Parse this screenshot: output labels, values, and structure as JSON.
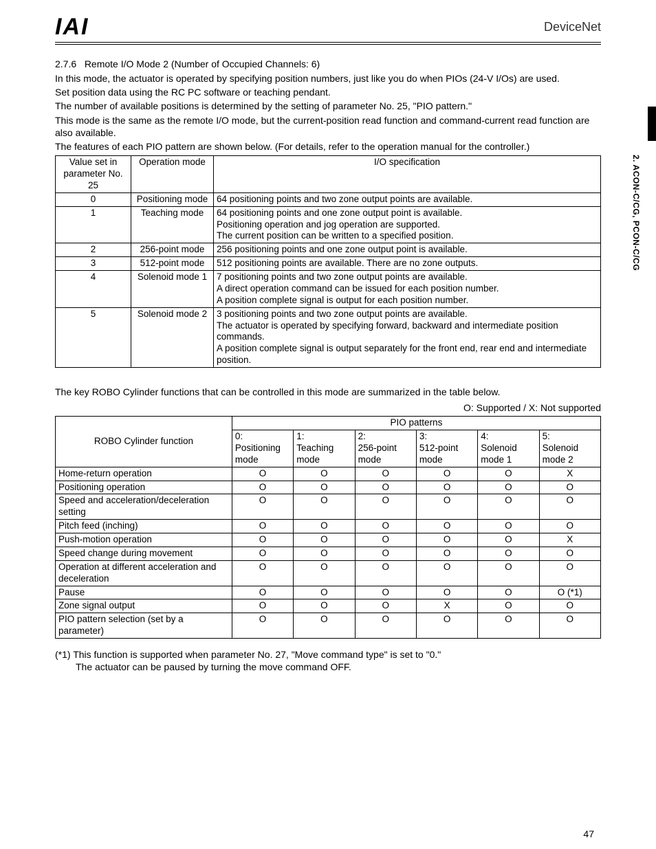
{
  "header": {
    "logo_text": "IAI",
    "brand": "DeviceNet"
  },
  "side_tab": "2. ACON-C/CG, PCON-C/CG",
  "section": {
    "num": "2.7.6",
    "title": "Remote I/O Mode 2 (Number of Occupied Channels: 6)"
  },
  "intro": {
    "p1": "In this mode, the actuator is operated by specifying position numbers, just like you do when PIOs (24-V I/Os) are used.",
    "p2": "Set position data using the RC PC software or teaching pendant.",
    "p3": "The number of available positions is determined by the setting of parameter No. 25, \"PIO pattern.\"",
    "p4": "This mode is the same as the remote I/O mode, but the current-position read function and command-current read function are also available.",
    "p5": "The features of each PIO pattern are shown below. (For details, refer to the operation manual for the controller.)"
  },
  "table1": {
    "headers": {
      "c1a": "Value set in",
      "c1b": "parameter No. 25",
      "c2": "Operation mode",
      "c3": "I/O specification"
    },
    "rows": [
      {
        "v": "0",
        "mode": "Positioning mode",
        "spec": "64 positioning points and two zone output points are available."
      },
      {
        "v": "1",
        "mode": "Teaching mode",
        "spec": "64 positioning points and one zone output point is available.\nPositioning operation and jog operation are supported.\nThe current position can be written to a specified position."
      },
      {
        "v": "2",
        "mode": "256-point mode",
        "spec": "256 positioning points and one zone output point is available."
      },
      {
        "v": "3",
        "mode": "512-point mode",
        "spec": "512 positioning points are available. There are no zone outputs."
      },
      {
        "v": "4",
        "mode": "Solenoid mode 1",
        "spec": "7 positioning points and two zone output points are available.\nA direct operation command can be issued for each position number.\nA position complete signal is output for each position number."
      },
      {
        "v": "5",
        "mode": "Solenoid mode 2",
        "spec": "3 positioning points and two zone output points are available.\nThe actuator is operated by specifying forward, backward and intermediate position commands.\nA position complete signal is output separately for the front end, rear end and intermediate position."
      }
    ]
  },
  "mid_para": "The key ROBO Cylinder functions that can be controlled in this mode are summarized in the table below.",
  "legend": "O: Supported / X: Not supported",
  "table2": {
    "func_header": "ROBO Cylinder function",
    "pio_header": "PIO patterns",
    "cols": [
      "0:\nPositioning mode",
      "1:\nTeaching mode",
      "2:\n256-point mode",
      "3:\n512-point mode",
      "4:\nSolenoid mode 1",
      "5:\nSolenoid mode 2"
    ],
    "rows": [
      {
        "f": "Home-return operation",
        "v": [
          "O",
          "O",
          "O",
          "O",
          "O",
          "X"
        ]
      },
      {
        "f": "Positioning operation",
        "v": [
          "O",
          "O",
          "O",
          "O",
          "O",
          "O"
        ]
      },
      {
        "f": "Speed and acceleration/deceleration setting",
        "v": [
          "O",
          "O",
          "O",
          "O",
          "O",
          "O"
        ]
      },
      {
        "f": "Pitch feed (inching)",
        "v": [
          "O",
          "O",
          "O",
          "O",
          "O",
          "O"
        ]
      },
      {
        "f": "Push-motion operation",
        "v": [
          "O",
          "O",
          "O",
          "O",
          "O",
          "X"
        ]
      },
      {
        "f": "Speed change during movement",
        "v": [
          "O",
          "O",
          "O",
          "O",
          "O",
          "O"
        ]
      },
      {
        "f": "Operation at different acceleration and deceleration",
        "v": [
          "O",
          "O",
          "O",
          "O",
          "O",
          "O"
        ]
      },
      {
        "f": "Pause",
        "v": [
          "O",
          "O",
          "O",
          "O",
          "O",
          "O (*1)"
        ]
      },
      {
        "f": "Zone signal output",
        "v": [
          "O",
          "O",
          "O",
          "X",
          "O",
          "O"
        ]
      },
      {
        "f": "PIO pattern selection (set by a parameter)",
        "v": [
          "O",
          "O",
          "O",
          "O",
          "O",
          "O"
        ]
      }
    ]
  },
  "footnote": {
    "l1": "(*1)  This function is supported when parameter No. 27, \"Move command type\" is set to \"0.\"",
    "l2": "The actuator can be paused by turning the move command OFF."
  },
  "page_number": "47"
}
